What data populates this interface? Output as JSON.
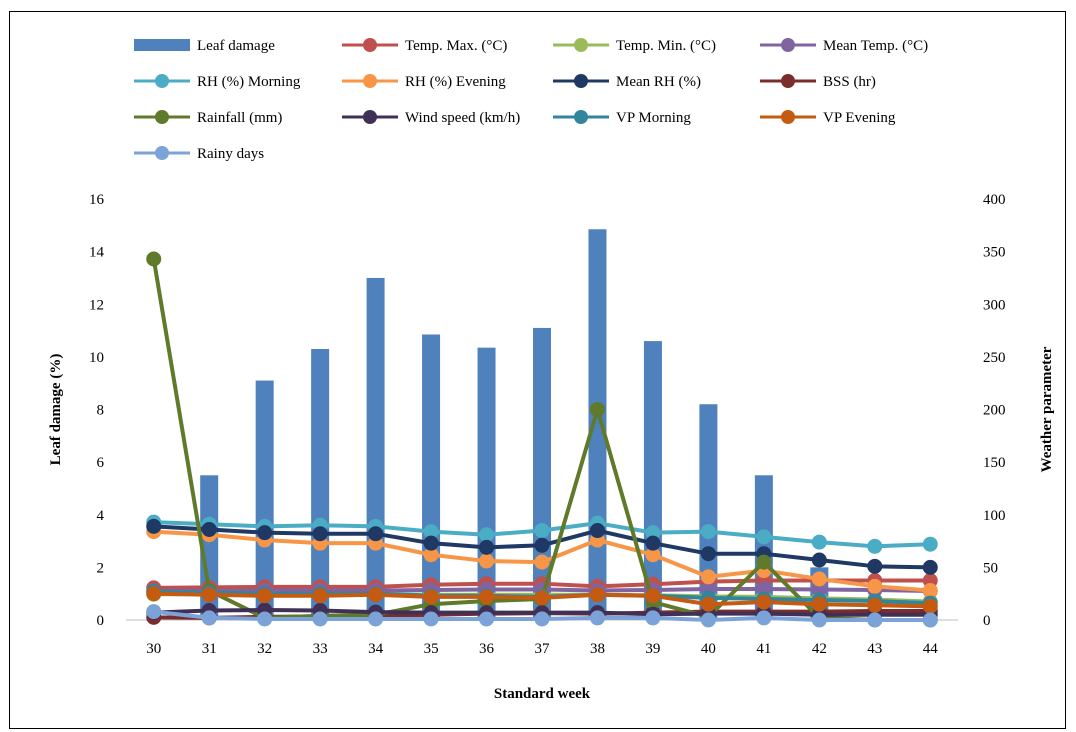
{
  "chart_data": {
    "type": "bar",
    "categories": [
      "30",
      "31",
      "32",
      "33",
      "34",
      "35",
      "36",
      "37",
      "38",
      "39",
      "40",
      "41",
      "42",
      "43",
      "44"
    ],
    "xlabel": "Standard week",
    "ylabel": "Leaf damage (%)",
    "y2label": "Weather parameter",
    "ylim": [
      0,
      16
    ],
    "y2lim": [
      0,
      400
    ],
    "yticks": [
      "0",
      "2",
      "4",
      "6",
      "8",
      "10",
      "12",
      "14",
      "16"
    ],
    "y2ticks": [
      "0",
      "50",
      "100",
      "150",
      "200",
      "250",
      "300",
      "350",
      "400"
    ],
    "grid": false,
    "legend_position": "top",
    "bar_series": {
      "name": "Leaf damage",
      "color": "#4f81bd",
      "values": [
        0,
        5.5,
        9.1,
        10.3,
        13.0,
        10.85,
        10.35,
        11.1,
        14.85,
        10.6,
        8.2,
        5.5,
        2.0,
        0,
        0
      ]
    },
    "series": [
      {
        "name": "Temp. Max. (°C)",
        "color": "#c0504d",
        "values": [
          30.5,
          31.0,
          31.5,
          31.5,
          31.5,
          33.5,
          34.5,
          34.5,
          32.0,
          34.0,
          36.5,
          37.5,
          37.5,
          37.5,
          37.5
        ]
      },
      {
        "name": "Temp. Min. (°C)",
        "color": "#9bbb59",
        "values": [
          24.5,
          24.5,
          24.5,
          24.5,
          24.5,
          24.0,
          24.0,
          24.0,
          24.0,
          23.5,
          22.5,
          22.0,
          20.5,
          19.5,
          17.5
        ]
      },
      {
        "name": "Mean Temp. (°C)",
        "color": "#8064a2",
        "values": [
          27.5,
          27.5,
          28.0,
          28.0,
          28.0,
          28.5,
          29.0,
          29.0,
          28.0,
          28.5,
          29.5,
          29.5,
          29.0,
          28.5,
          27.5
        ]
      },
      {
        "name": "RH (%) Morning",
        "color": "#4bacc6",
        "values": [
          93,
          91,
          89,
          90,
          89,
          84,
          81,
          85,
          92,
          83,
          84,
          79,
          74,
          70,
          72
        ]
      },
      {
        "name": "RH (%) Evening",
        "color": "#f79646",
        "values": [
          84,
          81,
          76,
          73,
          73,
          62,
          56,
          55,
          76,
          62,
          41,
          47,
          39,
          32,
          28
        ]
      },
      {
        "name": "Mean RH (%)",
        "color": "#1f3864",
        "values": [
          89,
          86,
          83,
          82,
          82,
          73,
          69,
          71,
          85,
          73,
          63,
          63,
          57,
          51,
          50
        ]
      },
      {
        "name": "BSS (hr)",
        "color": "#7b2c2c",
        "values": [
          2.5,
          2.0,
          3.0,
          3.5,
          4.0,
          5.0,
          6.0,
          6.5,
          6.0,
          7.0,
          8.0,
          8.0,
          8.0,
          8.5,
          8.5
        ]
      },
      {
        "name": "Rainfall (mm)",
        "color": "#5f7a2b",
        "values": [
          343,
          28,
          2,
          4,
          5,
          15,
          18,
          20,
          200,
          17,
          3,
          55,
          2,
          0,
          0
        ]
      },
      {
        "name": "Wind speed (km/h)",
        "color": "#403055",
        "values": [
          7.0,
          9.0,
          9.5,
          9.0,
          7.5,
          7.0,
          7.0,
          7.0,
          7.0,
          5.5,
          6.0,
          6.0,
          5.0,
          5.0,
          5.0
        ]
      },
      {
        "name": "VP Morning",
        "color": "#31859c",
        "values": [
          27,
          26,
          25,
          25,
          25,
          23,
          23,
          22,
          24,
          23,
          21,
          20,
          19,
          18,
          16
        ]
      },
      {
        "name": "VP Evening",
        "color": "#c55a11",
        "values": [
          25,
          24,
          23,
          23,
          24,
          22,
          22,
          21,
          24,
          23,
          15,
          17,
          15,
          14,
          13
        ]
      },
      {
        "name": "Rainy days",
        "color": "#7ba3d8",
        "values": [
          8,
          2,
          1,
          1,
          1,
          1,
          1,
          1,
          2,
          2,
          0,
          2,
          0,
          0,
          0
        ]
      }
    ]
  }
}
